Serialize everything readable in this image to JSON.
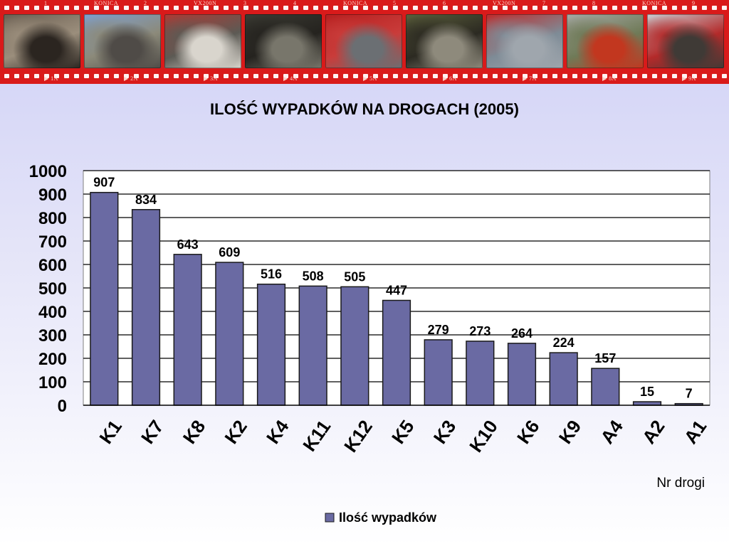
{
  "filmstrip": {
    "top_labels": [
      "1",
      "KONICA",
      "2",
      "VX200N",
      "3",
      "4",
      "KONICA",
      "5",
      "6",
      "VX200N",
      "7",
      "8",
      "KONICA",
      "9"
    ],
    "bottom_labels": [
      "1A",
      "2A",
      "3A",
      "4A",
      "5A",
      "6A",
      "7A",
      "8A",
      "9A"
    ],
    "frames": [
      {
        "name": "crashed-car-photo",
        "colors": [
          "#6b5f52",
          "#2b2520",
          "#9b8e7c"
        ]
      },
      {
        "name": "wrecked-suv-photo",
        "colors": [
          "#7ea0cf",
          "#4f4b47",
          "#8c8a7a"
        ]
      },
      {
        "name": "train-car-collision-photo",
        "colors": [
          "#b03a34",
          "#d9d5cd",
          "#5c5a54"
        ]
      },
      {
        "name": "car-in-trees-photo",
        "colors": [
          "#3b3b33",
          "#78766b",
          "#25231f"
        ]
      },
      {
        "name": "truck-and-red-car-photo",
        "colors": [
          "#b71f1f",
          "#6b6f73",
          "#c93c3a"
        ]
      },
      {
        "name": "firefighters-rescue-photo",
        "colors": [
          "#5b5f3b",
          "#8e8a7c",
          "#2c2a22"
        ]
      },
      {
        "name": "red-car-truck-photo",
        "colors": [
          "#c02a2a",
          "#9fa6ad",
          "#7e8b96"
        ]
      },
      {
        "name": "tractor-crash-photo",
        "colors": [
          "#a7a9a6",
          "#c2371f",
          "#6f7a57"
        ]
      },
      {
        "name": "bus-wreck-photo",
        "colors": [
          "#c9cdd2",
          "#3f3a36",
          "#b42a2a"
        ]
      }
    ]
  },
  "colors": {
    "bar_fill": "#6a6aa3",
    "bar_stroke": "#1a1a1a",
    "plot_bg": "#ffffff",
    "grid": "#000000"
  },
  "chart_data": {
    "type": "bar",
    "title": "ILOŚĆ  WYPADKÓW  NA  DROGACH  (2005)",
    "categories": [
      "K1",
      "K7",
      "K8",
      "K2",
      "K4",
      "K11",
      "K12",
      "K5",
      "K3",
      "K10",
      "K6",
      "K9",
      "A4",
      "A2",
      "A1"
    ],
    "series": [
      {
        "name": "Ilość wypadków",
        "values": [
          907,
          834,
          643,
          609,
          516,
          508,
          505,
          447,
          279,
          273,
          264,
          224,
          157,
          15,
          7
        ]
      }
    ],
    "xlabel": "Nr drogi",
    "ylabel": "",
    "ylim": [
      0,
      1000
    ],
    "yticks": [
      0,
      100,
      200,
      300,
      400,
      500,
      600,
      700,
      800,
      900,
      1000
    ],
    "grid": true,
    "legend": "bottom-center",
    "data_labels": true
  }
}
